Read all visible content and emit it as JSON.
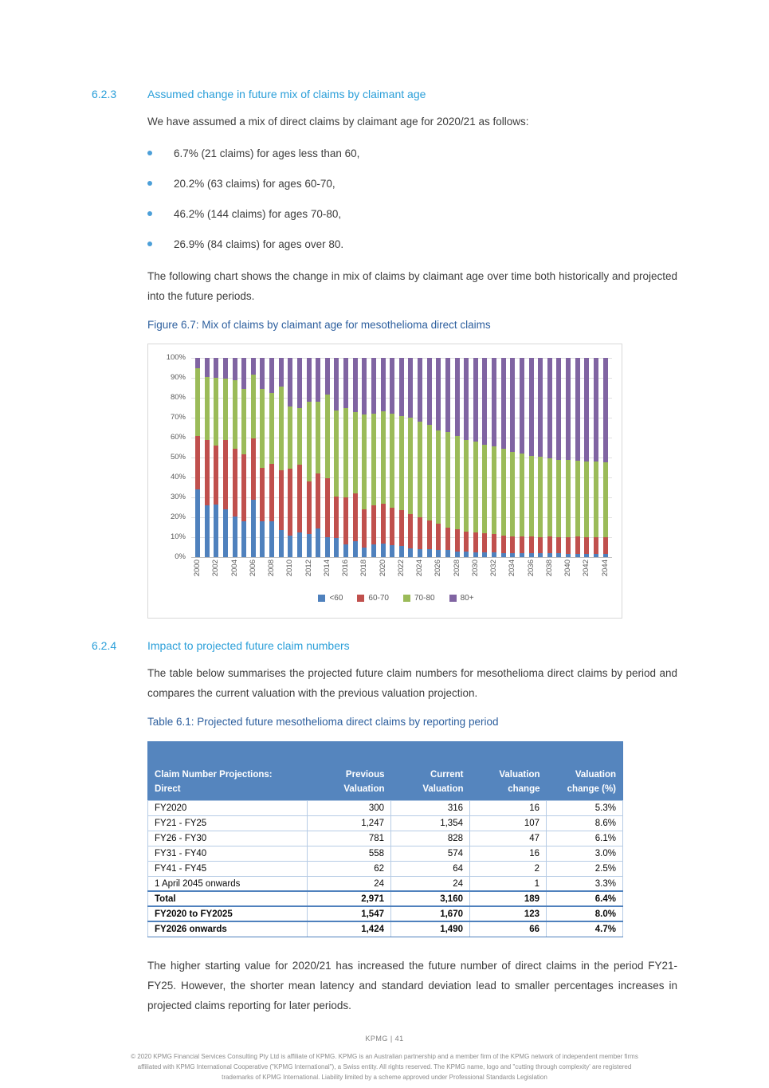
{
  "page": {
    "section_623": {
      "number": "6.2.3",
      "title": "Assumed change in future mix of claims by claimant age"
    },
    "intro": "We have assumed a mix of direct claims by claimant age for 2020/21 as follows:",
    "bullets": [
      "6.7% (21 claims) for ages less than 60,",
      "20.2% (63 claims) for ages 60-70,",
      "46.2% (144 claims) for ages 70-80,",
      "26.9% (84 claims) for ages over 80."
    ],
    "para_after_bullets": "The following chart shows the change in mix of claims by claimant age over time both historically and projected into the future periods.",
    "figure_caption": "Figure 6.7: Mix of claims by claimant age for mesothelioma direct claims",
    "section_624": {
      "number": "6.2.4",
      "title": "Impact to projected future claim numbers"
    },
    "para_table_intro": "The table below summarises the projected future claim numbers for mesothelioma direct claims by period and compares the current valuation with the previous valuation projection.",
    "table_caption": "Table 6.1: Projected future mesothelioma direct claims by reporting period",
    "closing_para": "The higher starting value for 2020/21 has increased the future number of direct claims in the period FY21-FY25. However, the shorter mean latency and standard deviation lead to smaller percentages increases in projected claims reporting for later periods.",
    "footer": {
      "page_label": "KPMG  |  41",
      "legal": [
        "© 2020 KPMG Financial Services Consulting Pty Ltd is affiliate of KPMG. KPMG is an Australian partnership and a member firm of the KPMG network of independent member firms",
        "affiliated with KPMG International Cooperative (\"KPMG International\"), a Swiss entity. All rights reserved. The KPMG name, logo and \"cutting through complexity' are registered",
        "trademarks of KPMG International. Liability limited by a scheme approved under Professional Standards Legislation"
      ]
    },
    "colors": {
      "heading_cyan": "#2b9fd9",
      "caption_blue": "#2d5f9e",
      "table_header_bg": "#5585be",
      "bullet_blue": "#4c9fd8"
    }
  },
  "chart_data": {
    "type": "bar",
    "stacked": true,
    "percent": true,
    "title": "",
    "xlabel": "",
    "ylabel": "",
    "ylim": [
      0,
      100
    ],
    "grid": true,
    "legend_position": "bottom",
    "y_ticks": [
      "100%",
      "90%",
      "80%",
      "70%",
      "60%",
      "50%",
      "40%",
      "30%",
      "20%",
      "10%",
      "0%"
    ],
    "x": [
      2000,
      2001,
      2002,
      2003,
      2004,
      2005,
      2006,
      2007,
      2008,
      2009,
      2010,
      2011,
      2012,
      2013,
      2014,
      2015,
      2016,
      2017,
      2018,
      2019,
      2020,
      2021,
      2022,
      2023,
      2024,
      2025,
      2026,
      2027,
      2028,
      2029,
      2030,
      2031,
      2032,
      2033,
      2034,
      2035,
      2036,
      2037,
      2038,
      2039,
      2040,
      2041,
      2042,
      2043,
      2044
    ],
    "series": [
      {
        "name": "<60",
        "color": "#4F81BD",
        "values": [
          34,
          26,
          26.5,
          24,
          20.5,
          18,
          29,
          18,
          18,
          13.5,
          11,
          12.5,
          11.5,
          14.5,
          10,
          9.5,
          6.5,
          8,
          5,
          6.5,
          6.7,
          6,
          5.5,
          4.5,
          4,
          4,
          3.5,
          3.5,
          3,
          3,
          2.5,
          2.5,
          2.5,
          2,
          2,
          2,
          2,
          2,
          2,
          2,
          1.5,
          1.5,
          1.5,
          1.5,
          1.5
        ]
      },
      {
        "name": "60-70",
        "color": "#C0504D",
        "values": [
          27,
          33,
          29.5,
          35,
          34,
          33.5,
          30.5,
          27,
          29,
          30,
          33.5,
          34,
          26.5,
          27.5,
          29.5,
          21,
          23.5,
          24,
          19,
          19.5,
          20.2,
          19,
          18,
          17,
          16,
          14.5,
          13.5,
          11.5,
          11,
          10,
          10,
          9.5,
          9,
          9,
          8.5,
          8.5,
          8.5,
          8,
          8.5,
          8,
          8.5,
          9,
          8.5,
          8.5,
          8.5
        ]
      },
      {
        "name": "70-80",
        "color": "#9BBB59",
        "values": [
          34,
          31.5,
          34,
          30.5,
          34.5,
          33,
          32,
          39.5,
          35.5,
          42,
          31,
          28.5,
          40,
          36,
          42,
          43,
          45,
          41,
          47.5,
          46,
          46.2,
          47,
          47.5,
          48.5,
          48,
          48,
          46.5,
          48,
          47,
          46,
          45.5,
          44.5,
          44,
          43.5,
          42.5,
          41.5,
          40.5,
          40.5,
          39,
          39,
          39,
          38,
          38,
          38,
          37.5
        ]
      },
      {
        "name": "80+",
        "color": "#8064A2",
        "values": [
          5,
          9.5,
          10,
          10.5,
          11,
          15.5,
          8.5,
          15.5,
          17.5,
          14.5,
          24.5,
          25,
          22,
          22,
          18.5,
          26.5,
          25,
          27,
          28.5,
          28,
          26.9,
          28,
          29,
          30,
          32,
          33.5,
          36.5,
          37,
          39,
          41,
          42,
          43.5,
          44.5,
          45.5,
          47,
          48,
          49,
          49.5,
          50.5,
          51,
          51,
          51.5,
          52,
          52,
          52.5
        ]
      }
    ]
  },
  "table": {
    "header": [
      [
        "Claim Number Projections:",
        "Direct"
      ],
      [
        "Previous",
        "Valuation"
      ],
      [
        "Current",
        "Valuation"
      ],
      [
        "Valuation",
        "change"
      ],
      [
        "Valuation",
        "change (%)"
      ]
    ],
    "rows": [
      {
        "label": "FY2020",
        "values": [
          "300",
          "316",
          "16",
          "5.3%"
        ],
        "bold": false
      },
      {
        "label": "FY21 - FY25",
        "values": [
          "1,247",
          "1,354",
          "107",
          "8.6%"
        ],
        "bold": false
      },
      {
        "label": "FY26 - FY30",
        "values": [
          "781",
          "828",
          "47",
          "6.1%"
        ],
        "bold": false
      },
      {
        "label": "FY31 - FY40",
        "values": [
          "558",
          "574",
          "16",
          "3.0%"
        ],
        "bold": false
      },
      {
        "label": "FY41 - FY45",
        "values": [
          "62",
          "64",
          "2",
          "2.5%"
        ],
        "bold": false
      },
      {
        "label": "1 April 2045 onwards",
        "values": [
          "24",
          "24",
          "1",
          "3.3%"
        ],
        "bold": false
      },
      {
        "label": "Total",
        "values": [
          "2,971",
          "3,160",
          "189",
          "6.4%"
        ],
        "bold": true
      },
      {
        "label": "FY2020 to FY2025",
        "values": [
          "1,547",
          "1,670",
          "123",
          "8.0%"
        ],
        "bold": true
      },
      {
        "label": "FY2026 onwards",
        "values": [
          "1,424",
          "1,490",
          "66",
          "4.7%"
        ],
        "bold": true
      }
    ]
  }
}
